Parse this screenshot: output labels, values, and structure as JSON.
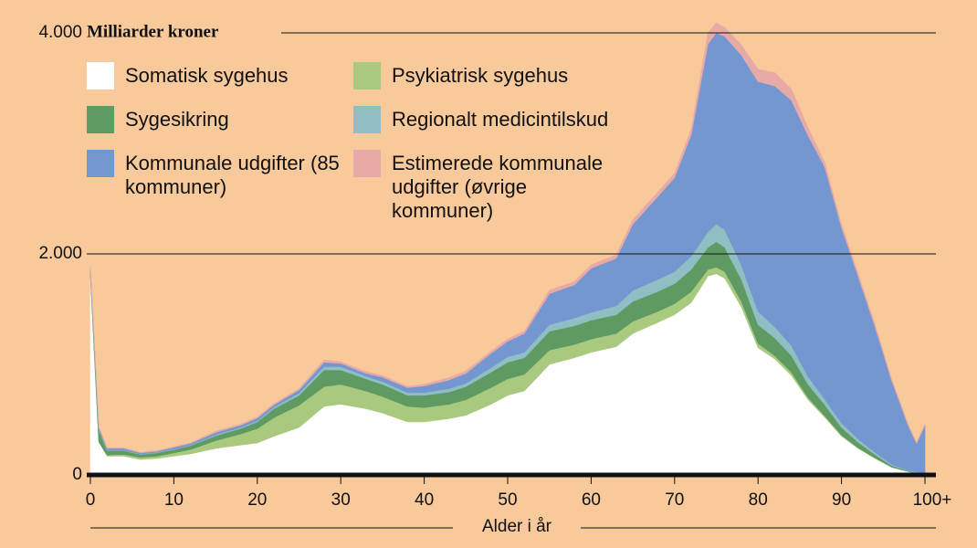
{
  "chart_data": {
    "type": "stacked-area",
    "y_label": "Milliarder kroner",
    "x_label": "Alder i år",
    "x": [
      0,
      1,
      2,
      4,
      6,
      8,
      10,
      12,
      15,
      18,
      20,
      22,
      25,
      28,
      30,
      33,
      35,
      38,
      40,
      43,
      45,
      48,
      50,
      52,
      55,
      58,
      60,
      63,
      65,
      68,
      70,
      72,
      74,
      75,
      76,
      78,
      80,
      82,
      84,
      86,
      88,
      90,
      92,
      94,
      96,
      98,
      99,
      100
    ],
    "series": [
      {
        "name": "Somatisk sygehus",
        "color": "#ffffff",
        "values": [
          1800,
          300,
          170,
          170,
          140,
          150,
          170,
          190,
          240,
          270,
          290,
          350,
          430,
          620,
          640,
          600,
          560,
          480,
          480,
          510,
          540,
          640,
          720,
          760,
          1000,
          1060,
          1110,
          1160,
          1280,
          1380,
          1450,
          1560,
          1800,
          1820,
          1780,
          1520,
          1150,
          1050,
          900,
          680,
          520,
          350,
          240,
          150,
          70,
          30,
          15,
          10
        ]
      },
      {
        "name": "Psykiatrisk sygehus",
        "color": "#a9c97f",
        "values": [
          0,
          0,
          10,
          15,
          20,
          20,
          30,
          40,
          70,
          100,
          130,
          170,
          200,
          180,
          180,
          160,
          150,
          140,
          130,
          130,
          140,
          150,
          150,
          150,
          130,
          120,
          120,
          120,
          110,
          100,
          100,
          100,
          60,
          60,
          60,
          50,
          40,
          30,
          30,
          20,
          15,
          10,
          5,
          5,
          0,
          0,
          0,
          0
        ]
      },
      {
        "name": "Sygesikring",
        "color": "#5e9a62",
        "values": [
          50,
          100,
          40,
          35,
          25,
          30,
          30,
          35,
          45,
          50,
          60,
          80,
          90,
          150,
          130,
          110,
          110,
          100,
          110,
          110,
          120,
          140,
          150,
          150,
          170,
          170,
          170,
          170,
          180,
          180,
          180,
          200,
          200,
          230,
          220,
          200,
          170,
          160,
          150,
          120,
          100,
          70,
          50,
          30,
          15,
          5,
          5,
          5
        ]
      },
      {
        "name": "Regionalt medicintilskud",
        "color": "#8fbfc2",
        "values": [
          0,
          10,
          5,
          5,
          5,
          5,
          5,
          5,
          10,
          10,
          10,
          15,
          20,
          30,
          30,
          25,
          25,
          25,
          25,
          30,
          30,
          40,
          50,
          50,
          60,
          70,
          70,
          80,
          100,
          110,
          110,
          120,
          140,
          160,
          160,
          130,
          120,
          100,
          90,
          70,
          50,
          40,
          30,
          20,
          10,
          5,
          5,
          5
        ]
      },
      {
        "name": "Kommunale udgifter (85 kommuner)",
        "color": "#7597d1",
        "values": [
          20,
          20,
          15,
          15,
          10,
          10,
          15,
          15,
          20,
          20,
          25,
          20,
          30,
          40,
          30,
          25,
          40,
          45,
          60,
          80,
          90,
          130,
          140,
          170,
          280,
          300,
          400,
          430,
          600,
          750,
          850,
          1100,
          1700,
          1730,
          1750,
          1900,
          2080,
          2180,
          2220,
          2180,
          2100,
          1770,
          1470,
          1140,
          760,
          405,
          260,
          430
        ]
      },
      {
        "name": "Estimerede kommunale udgifter (øvrige kommuner)",
        "color": "#e8aaa6",
        "values": [
          10,
          10,
          5,
          5,
          5,
          5,
          5,
          5,
          10,
          10,
          10,
          10,
          10,
          20,
          15,
          15,
          15,
          10,
          15,
          20,
          20,
          20,
          20,
          20,
          30,
          30,
          30,
          30,
          40,
          40,
          40,
          50,
          100,
          90,
          80,
          90,
          110,
          120,
          100,
          70,
          40,
          30,
          25,
          20,
          15,
          10,
          5,
          10
        ]
      }
    ],
    "xlim": [
      0,
      100
    ],
    "xticks": [
      0,
      10,
      20,
      30,
      40,
      50,
      60,
      70,
      80,
      90,
      {
        "value": 100,
        "label": "100+"
      }
    ],
    "ylim": [
      0,
      4000
    ],
    "yticks": [
      {
        "value": 4000,
        "label": "4.000"
      },
      {
        "value": 2000,
        "label": "2.000"
      },
      0
    ],
    "grid": true
  }
}
